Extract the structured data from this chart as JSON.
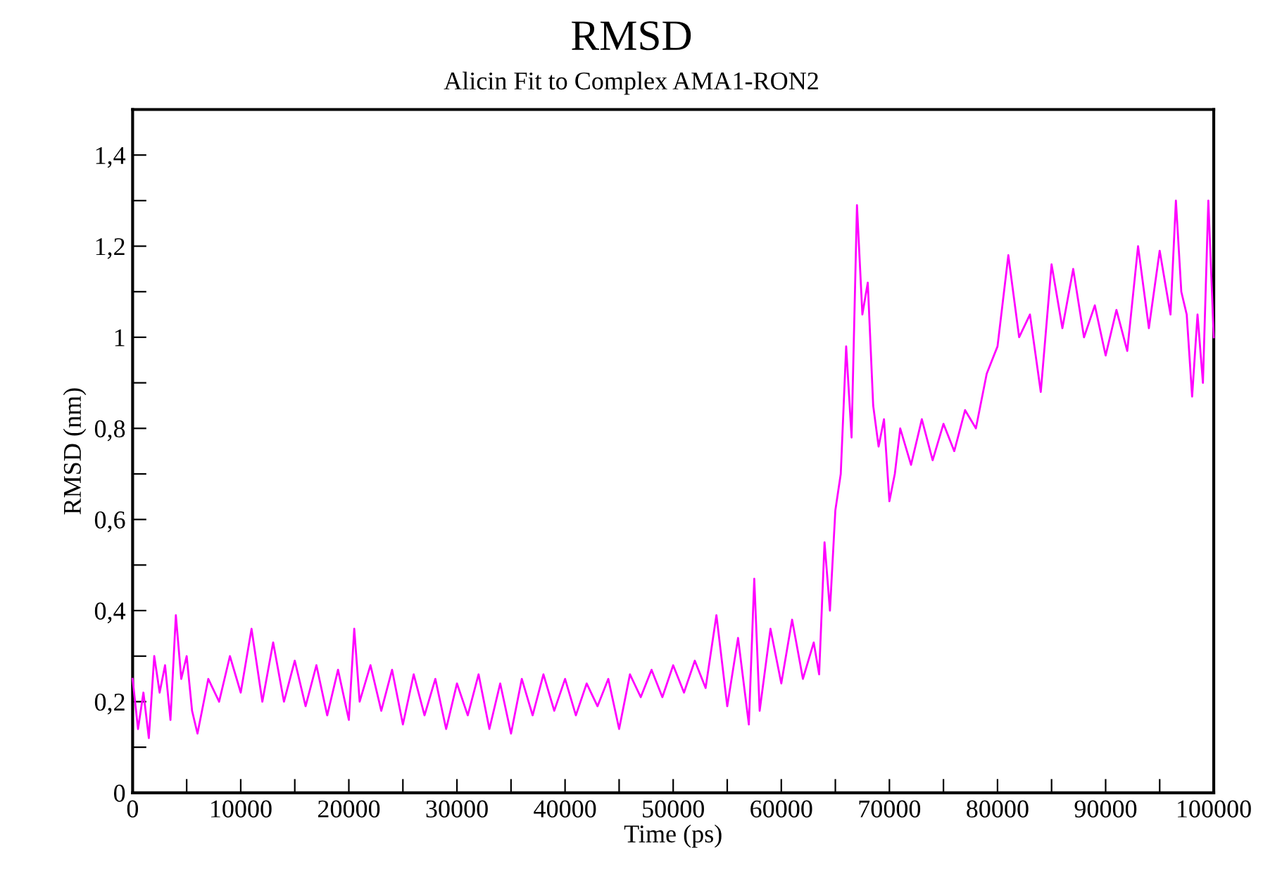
{
  "chart_data": {
    "type": "line",
    "title": "RMSD",
    "subtitle": "Alicin Fit to Complex AMA1-RON2",
    "xlabel": "Time (ps)",
    "ylabel": "RMSD (nm)",
    "xlim": [
      0,
      100000
    ],
    "ylim": [
      0,
      1.5
    ],
    "xticks": [
      0,
      {
        "value": 5000,
        "label": null
      },
      10000,
      {
        "value": 15000,
        "label": null
      },
      20000,
      {
        "value": 25000,
        "label": null
      },
      30000,
      {
        "value": 35000,
        "label": null
      },
      40000,
      {
        "value": 45000,
        "label": null
      },
      50000,
      {
        "value": 55000,
        "label": null
      },
      60000,
      {
        "value": 65000,
        "label": null
      },
      70000,
      {
        "value": 75000,
        "label": null
      },
      80000,
      {
        "value": 85000,
        "label": null
      },
      90000,
      {
        "value": 95000,
        "label": null
      },
      100000
    ],
    "yticks": [
      0,
      {
        "value": 0.1,
        "label": null
      },
      {
        "value": 0.2,
        "label": "0,2"
      },
      {
        "value": 0.3,
        "label": null
      },
      {
        "value": 0.4,
        "label": "0,4"
      },
      {
        "value": 0.5,
        "label": null
      },
      {
        "value": 0.6,
        "label": "0,6"
      },
      {
        "value": 0.7,
        "label": null
      },
      {
        "value": 0.8,
        "label": "0,8"
      },
      {
        "value": 0.9,
        "label": null
      },
      1,
      {
        "value": 1.1,
        "label": null
      },
      {
        "value": 1.2,
        "label": "1,2"
      },
      {
        "value": 1.3,
        "label": null
      },
      {
        "value": 1.4,
        "label": "1,4"
      }
    ],
    "marker": "none",
    "line_style": "solid",
    "series": [
      {
        "color": "#ff00ff",
        "x": [
          0,
          500,
          1000,
          1500,
          2000,
          2500,
          3000,
          3500,
          4000,
          4500,
          5000,
          5500,
          6000,
          7000,
          8000,
          9000,
          10000,
          11000,
          12000,
          13000,
          14000,
          15000,
          16000,
          17000,
          18000,
          19000,
          20000,
          20500,
          21000,
          22000,
          23000,
          24000,
          25000,
          26000,
          27000,
          28000,
          29000,
          30000,
          31000,
          32000,
          33000,
          34000,
          35000,
          36000,
          37000,
          38000,
          39000,
          40000,
          41000,
          42000,
          43000,
          44000,
          45000,
          46000,
          47000,
          48000,
          49000,
          50000,
          51000,
          52000,
          53000,
          54000,
          55000,
          56000,
          57000,
          57500,
          58000,
          59000,
          60000,
          61000,
          62000,
          63000,
          63500,
          64000,
          64500,
          65000,
          65500,
          66000,
          66500,
          67000,
          67500,
          68000,
          68500,
          69000,
          69500,
          70000,
          70500,
          71000,
          72000,
          73000,
          74000,
          75000,
          76000,
          77000,
          78000,
          79000,
          80000,
          81000,
          82000,
          83000,
          84000,
          85000,
          86000,
          87000,
          88000,
          89000,
          90000,
          91000,
          92000,
          93000,
          94000,
          95000,
          96000,
          96500,
          97000,
          97500,
          98000,
          98500,
          99000,
          99500,
          100000
        ],
        "values": [
          0.25,
          0.14,
          0.22,
          0.12,
          0.3,
          0.22,
          0.28,
          0.16,
          0.39,
          0.25,
          0.3,
          0.18,
          0.13,
          0.25,
          0.2,
          0.3,
          0.22,
          0.36,
          0.2,
          0.33,
          0.2,
          0.29,
          0.19,
          0.28,
          0.17,
          0.27,
          0.16,
          0.36,
          0.2,
          0.28,
          0.18,
          0.27,
          0.15,
          0.26,
          0.17,
          0.25,
          0.14,
          0.24,
          0.17,
          0.26,
          0.14,
          0.24,
          0.13,
          0.25,
          0.17,
          0.26,
          0.18,
          0.25,
          0.17,
          0.24,
          0.19,
          0.25,
          0.14,
          0.26,
          0.21,
          0.27,
          0.21,
          0.28,
          0.22,
          0.29,
          0.23,
          0.39,
          0.19,
          0.34,
          0.15,
          0.47,
          0.18,
          0.36,
          0.24,
          0.38,
          0.25,
          0.33,
          0.26,
          0.55,
          0.4,
          0.62,
          0.7,
          0.98,
          0.78,
          1.29,
          1.05,
          1.12,
          0.85,
          0.76,
          0.82,
          0.64,
          0.7,
          0.8,
          0.72,
          0.82,
          0.73,
          0.81,
          0.75,
          0.84,
          0.8,
          0.92,
          0.98,
          1.18,
          1.0,
          1.05,
          0.88,
          1.16,
          1.02,
          1.15,
          1.0,
          1.07,
          0.96,
          1.06,
          0.97,
          1.2,
          1.02,
          1.19,
          1.05,
          1.3,
          1.1,
          1.05,
          0.87,
          1.05,
          0.9,
          1.3,
          1.0
        ]
      }
    ]
  }
}
